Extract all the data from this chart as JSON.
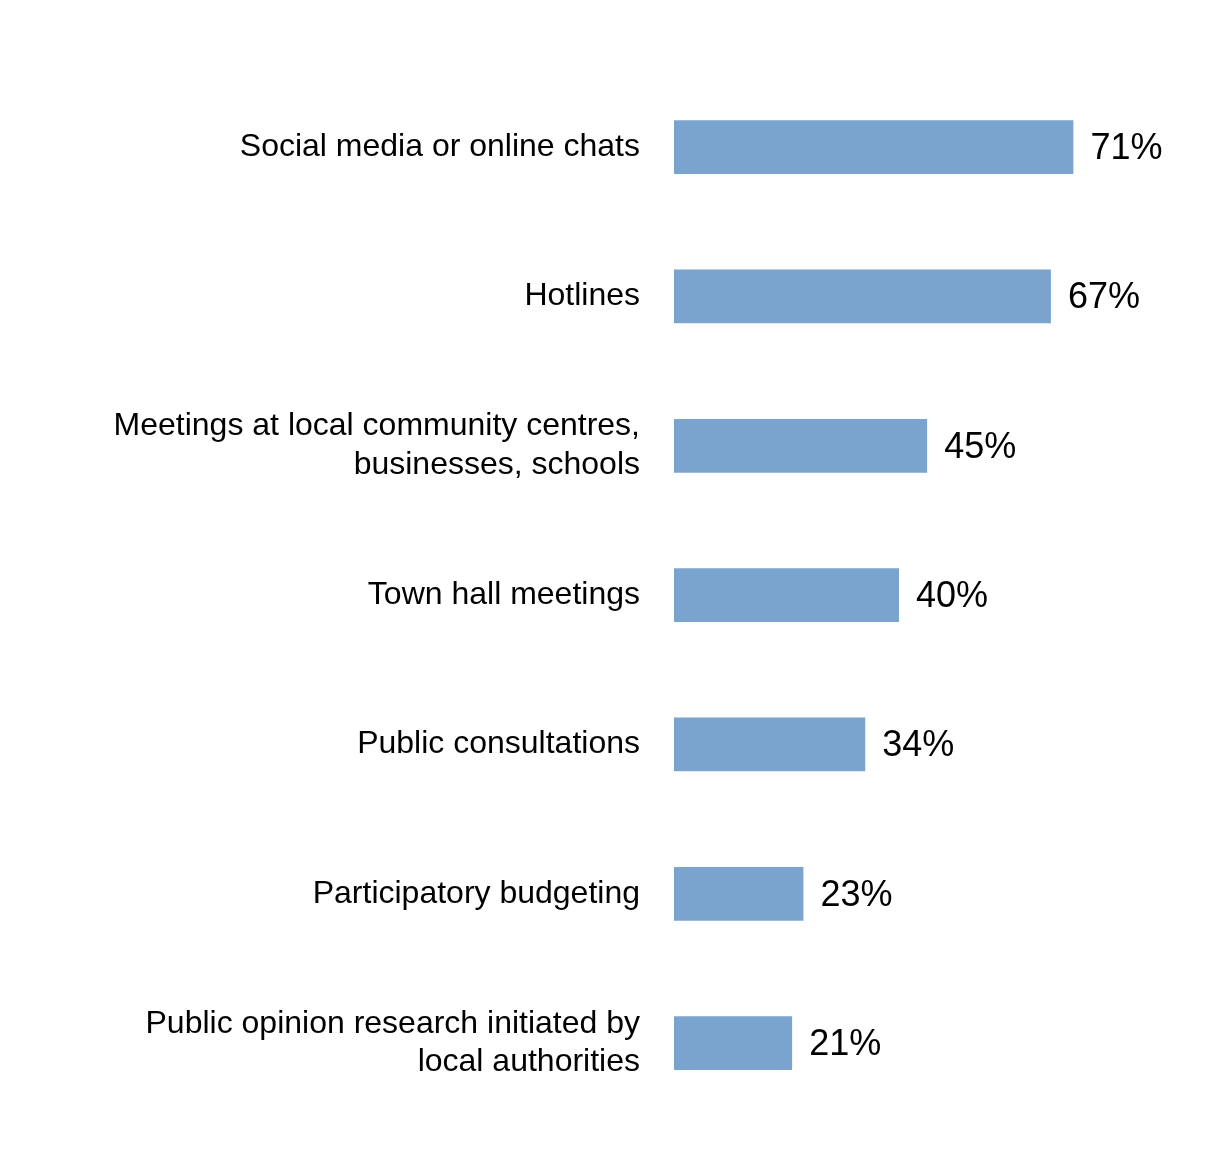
{
  "chart_data": {
    "type": "bar",
    "orientation": "horizontal",
    "categories": [
      "Social media or online chats",
      "Hotlines",
      "Meetings at local community centres,\nbusinesses, schools",
      "Town hall meetings",
      "Public consultations",
      "Participatory budgeting",
      "Public opinion research initiated by\nlocal authorities"
    ],
    "values": [
      71,
      67,
      45,
      40,
      34,
      23,
      21
    ],
    "value_labels": [
      "71%",
      "67%",
      "45%",
      "40%",
      "34%",
      "23%",
      "21%"
    ],
    "color": "#7aa3cd",
    "tick_labels": "y",
    "legend": false
  }
}
